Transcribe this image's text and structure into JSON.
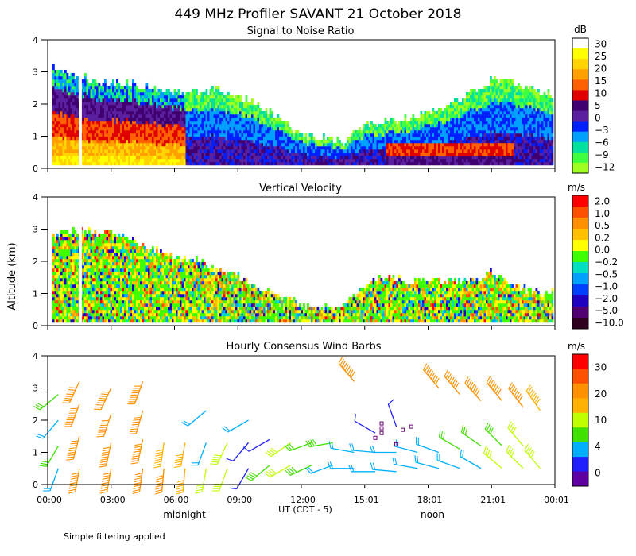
{
  "title": "449 MHz Profiler SAVANT 21 October 2018",
  "x_axis": {
    "ticks": [
      "00:00",
      "03:00",
      "06:00",
      "09:00",
      "12:00",
      "15:01",
      "18:01",
      "21:01",
      "00:01"
    ],
    "label": "UT  (CDT - 5)",
    "annotations": [
      "midnight",
      "noon"
    ]
  },
  "y_axis": {
    "label": "Altitude (km)",
    "ticks": [
      "0",
      "1",
      "2",
      "3",
      "4"
    ],
    "range": [
      0,
      4
    ]
  },
  "footnote": "Simple filtering applied",
  "chart_data": [
    {
      "type": "heatmap",
      "id": "snr",
      "title": "Signal to Noise Ratio",
      "unit": "dB",
      "colorbar": {
        "labels": [
          "30",
          "25",
          "20",
          "15",
          "10",
          "5",
          "0",
          "−3",
          "−6",
          "−9",
          "−12"
        ],
        "colors": [
          "#ffffff",
          "#ffff00",
          "#ffd400",
          "#ffa000",
          "#ff6000",
          "#e00000",
          "#400070",
          "#5a20a0",
          "#0020ff",
          "#00a0ff",
          "#00e0a0",
          "#40ff40",
          "#a0ff20"
        ]
      },
      "profile_hours": [
        0,
        1,
        2,
        3,
        4,
        5,
        6,
        7,
        8,
        9,
        10,
        11,
        12,
        13,
        14,
        15,
        16,
        17,
        18,
        19,
        20,
        21,
        22,
        23,
        24
      ],
      "signal_top_km": [
        3.2,
        2.9,
        2.7,
        2.6,
        2.6,
        2.4,
        2.3,
        2.3,
        2.4,
        2.2,
        1.9,
        1.5,
        1.0,
        0.9,
        0.8,
        1.3,
        1.4,
        1.5,
        1.7,
        1.9,
        2.3,
        2.7,
        2.6,
        2.4,
        2.2
      ]
    },
    {
      "type": "heatmap",
      "id": "velocity",
      "title": "Vertical Velocity",
      "unit": "m/s",
      "colorbar": {
        "labels": [
          "2.0",
          "1.0",
          "0.5",
          "0.2",
          "0.0",
          "−0.2",
          "−0.5",
          "−1.0",
          "−2.0",
          "−5.0",
          "−10.0"
        ],
        "colors": [
          "#ff0000",
          "#ff5000",
          "#ff9000",
          "#ffc000",
          "#ffff00",
          "#40ff00",
          "#00e0c0",
          "#00a0ff",
          "#0040ff",
          "#2000c0",
          "#500070",
          "#300020"
        ]
      },
      "profile_hours": [
        0,
        1,
        2,
        3,
        4,
        5,
        6,
        7,
        8,
        9,
        10,
        11,
        12,
        13,
        14,
        15,
        16,
        17,
        18,
        19,
        20,
        21,
        22,
        23,
        24
      ],
      "signal_top_km": [
        2.8,
        2.9,
        2.9,
        2.8,
        2.6,
        2.3,
        2.1,
        2.0,
        1.7,
        1.5,
        1.1,
        0.9,
        0.6,
        0.5,
        0.6,
        1.2,
        1.5,
        1.3,
        1.4,
        1.3,
        1.4,
        1.6,
        1.2,
        1.0,
        1.0
      ]
    },
    {
      "type": "scatter",
      "id": "wind",
      "title": "Hourly Consensus Wind Barbs",
      "unit": "m/s",
      "colorbar": {
        "labels": [
          "30",
          "20",
          "10",
          "4",
          "0"
        ],
        "colors": [
          "#ff0000",
          "#ff5000",
          "#ff9000",
          "#ffb000",
          "#c0ff00",
          "#40e000",
          "#00b0ff",
          "#2020ff",
          "#6000a0"
        ]
      },
      "barbs": [
        {
          "hour": 0.5,
          "alt": 0.5,
          "speed": 5,
          "dir": 200
        },
        {
          "hour": 0.5,
          "alt": 1.2,
          "speed": 8,
          "dir": 210
        },
        {
          "hour": 0.5,
          "alt": 2.0,
          "speed": 6,
          "dir": 220
        },
        {
          "hour": 0.5,
          "alt": 2.8,
          "speed": 7,
          "dir": 230
        },
        {
          "hour": 1.5,
          "alt": 0.5,
          "speed": 22,
          "dir": 190
        },
        {
          "hour": 1.5,
          "alt": 1.5,
          "speed": 23,
          "dir": 195
        },
        {
          "hour": 1.5,
          "alt": 2.5,
          "speed": 22,
          "dir": 200
        },
        {
          "hour": 1.5,
          "alt": 3.2,
          "speed": 20,
          "dir": 205
        },
        {
          "hour": 3.0,
          "alt": 0.5,
          "speed": 23,
          "dir": 190
        },
        {
          "hour": 3.0,
          "alt": 1.3,
          "speed": 23,
          "dir": 192
        },
        {
          "hour": 3.0,
          "alt": 2.2,
          "speed": 21,
          "dir": 198
        },
        {
          "hour": 3.0,
          "alt": 3.0,
          "speed": 22,
          "dir": 205
        },
        {
          "hour": 4.5,
          "alt": 0.5,
          "speed": 23,
          "dir": 188
        },
        {
          "hour": 4.5,
          "alt": 1.4,
          "speed": 22,
          "dir": 192
        },
        {
          "hour": 4.5,
          "alt": 2.3,
          "speed": 21,
          "dir": 196
        },
        {
          "hour": 4.5,
          "alt": 3.2,
          "speed": 22,
          "dir": 200
        },
        {
          "hour": 5.5,
          "alt": 0.5,
          "speed": 20,
          "dir": 185
        },
        {
          "hour": 5.5,
          "alt": 1.3,
          "speed": 19,
          "dir": 188
        },
        {
          "hour": 6.5,
          "alt": 0.5,
          "speed": 15,
          "dir": 185
        },
        {
          "hour": 6.5,
          "alt": 1.3,
          "speed": 16,
          "dir": 190
        },
        {
          "hour": 7.5,
          "alt": 0.5,
          "speed": 10,
          "dir": 190
        },
        {
          "hour": 7.5,
          "alt": 1.3,
          "speed": 6,
          "dir": 200
        },
        {
          "hour": 7.5,
          "alt": 2.3,
          "speed": 5,
          "dir": 230
        },
        {
          "hour": 8.5,
          "alt": 0.5,
          "speed": 11,
          "dir": 200
        },
        {
          "hour": 8.5,
          "alt": 1.3,
          "speed": 12,
          "dir": 205
        },
        {
          "hour": 9.5,
          "alt": 0.5,
          "speed": 2,
          "dir": 210
        },
        {
          "hour": 9.5,
          "alt": 1.3,
          "speed": 3,
          "dir": 220
        },
        {
          "hour": 9.5,
          "alt": 2.0,
          "speed": 4,
          "dir": 240
        },
        {
          "hour": 10.5,
          "alt": 0.6,
          "speed": 9,
          "dir": 230
        },
        {
          "hour": 10.5,
          "alt": 1.4,
          "speed": 2,
          "dir": 240
        },
        {
          "hour": 11.5,
          "alt": 0.6,
          "speed": 10,
          "dir": 240
        },
        {
          "hour": 11.5,
          "alt": 1.3,
          "speed": 11,
          "dir": 235
        },
        {
          "hour": 12.5,
          "alt": 0.6,
          "speed": 9,
          "dir": 245
        },
        {
          "hour": 12.5,
          "alt": 1.3,
          "speed": 8,
          "dir": 250
        },
        {
          "hour": 13.5,
          "alt": 0.6,
          "speed": 4,
          "dir": 250
        },
        {
          "hour": 13.5,
          "alt": 1.3,
          "speed": 9,
          "dir": 260
        },
        {
          "hour": 14.5,
          "alt": 0.5,
          "speed": 5,
          "dir": 270
        },
        {
          "hour": 14.5,
          "alt": 1.0,
          "speed": 6,
          "dir": 280
        },
        {
          "hour": 14.5,
          "alt": 3.2,
          "speed": 22,
          "dir": 320
        },
        {
          "hour": 15.5,
          "alt": 0.4,
          "speed": 4,
          "dir": 270
        },
        {
          "hour": 15.5,
          "alt": 1.0,
          "speed": 5,
          "dir": 275
        },
        {
          "hour": 15.5,
          "alt": 1.6,
          "speed": 2,
          "dir": 300
        },
        {
          "hour": 16.5,
          "alt": 0.4,
          "speed": 5,
          "dir": 275
        },
        {
          "hour": 16.5,
          "alt": 1.0,
          "speed": 5,
          "dir": 270
        },
        {
          "hour": 16.5,
          "alt": 1.8,
          "speed": 2,
          "dir": 340
        },
        {
          "hour": 17.5,
          "alt": 0.5,
          "speed": 6,
          "dir": 280
        },
        {
          "hour": 17.5,
          "alt": 1.0,
          "speed": 6,
          "dir": 285
        },
        {
          "hour": 18.5,
          "alt": 0.5,
          "speed": 5,
          "dir": 285
        },
        {
          "hour": 18.5,
          "alt": 1.0,
          "speed": 5,
          "dir": 290
        },
        {
          "hour": 18.5,
          "alt": 3.0,
          "speed": 22,
          "dir": 320
        },
        {
          "hour": 19.5,
          "alt": 0.5,
          "speed": 6,
          "dir": 290
        },
        {
          "hour": 19.5,
          "alt": 1.1,
          "speed": 8,
          "dir": 300
        },
        {
          "hour": 19.5,
          "alt": 2.8,
          "speed": 20,
          "dir": 320
        },
        {
          "hour": 20.5,
          "alt": 0.5,
          "speed": 6,
          "dir": 300
        },
        {
          "hour": 20.5,
          "alt": 1.2,
          "speed": 8,
          "dir": 305
        },
        {
          "hour": 20.5,
          "alt": 2.6,
          "speed": 20,
          "dir": 318
        },
        {
          "hour": 21.5,
          "alt": 0.5,
          "speed": 10,
          "dir": 310
        },
        {
          "hour": 21.5,
          "alt": 1.2,
          "speed": 9,
          "dir": 315
        },
        {
          "hour": 21.5,
          "alt": 2.6,
          "speed": 21,
          "dir": 320
        },
        {
          "hour": 22.5,
          "alt": 0.5,
          "speed": 11,
          "dir": 315
        },
        {
          "hour": 22.5,
          "alt": 1.2,
          "speed": 10,
          "dir": 320
        },
        {
          "hour": 22.5,
          "alt": 2.4,
          "speed": 20,
          "dir": 322
        },
        {
          "hour": 23.3,
          "alt": 0.5,
          "speed": 12,
          "dir": 320
        },
        {
          "hour": 23.3,
          "alt": 2.3,
          "speed": 19,
          "dir": 325
        }
      ]
    }
  ]
}
